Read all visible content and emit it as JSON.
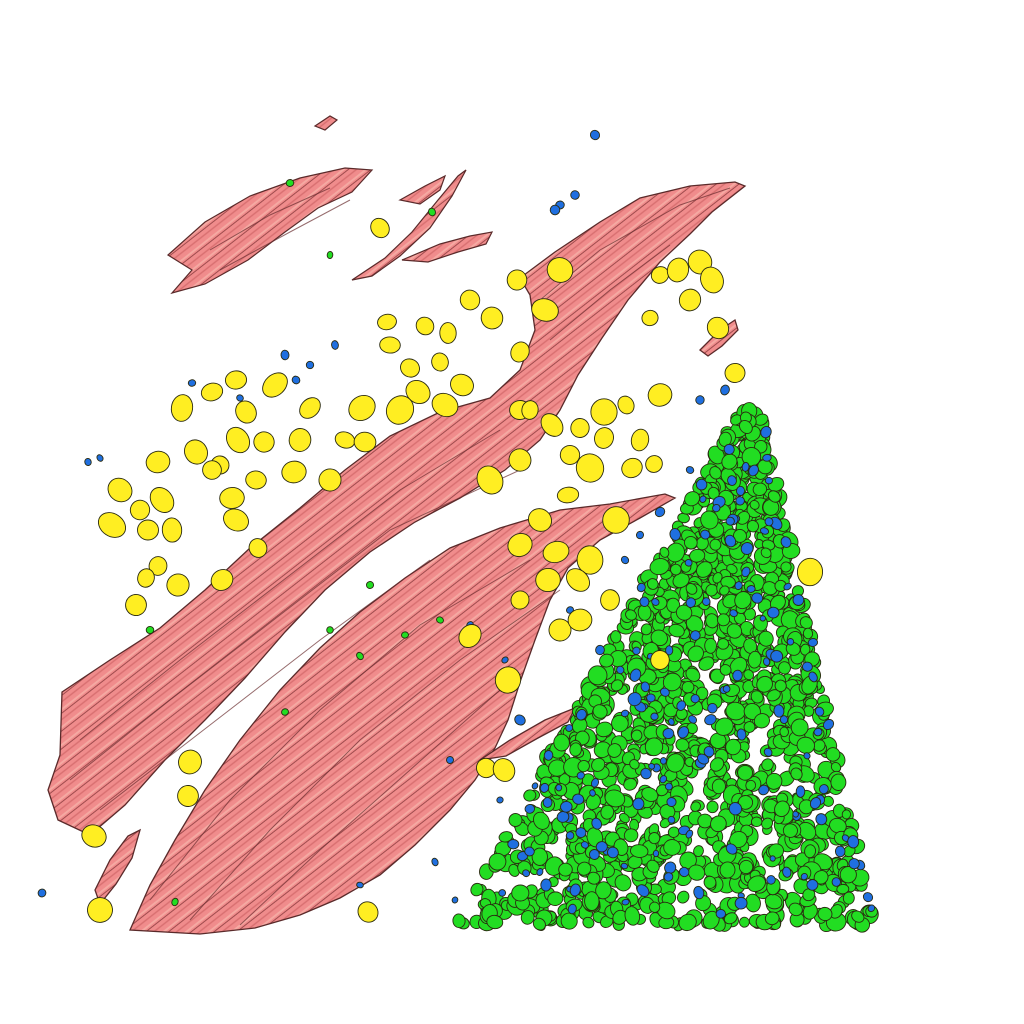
{
  "scene": {
    "background": "#ffffff",
    "palette": {
      "fiber_fill": "#f08c8c",
      "fiber_highlight": "#f7b0a8",
      "fiber_outline": "#5a2a2a",
      "cell_yellow": "#ffee22",
      "cell_green": "#22dd22",
      "cell_blue": "#1f6fe0",
      "cell_outline": "#2a2a10"
    },
    "objects": [
      {
        "kind": "muscle-fiber-bundle",
        "color": "fiber_fill"
      },
      {
        "kind": "yellow-cells",
        "color": "cell_yellow"
      },
      {
        "kind": "green-cells",
        "color": "cell_green"
      },
      {
        "kind": "blue-nuclei",
        "color": "cell_blue"
      }
    ]
  }
}
